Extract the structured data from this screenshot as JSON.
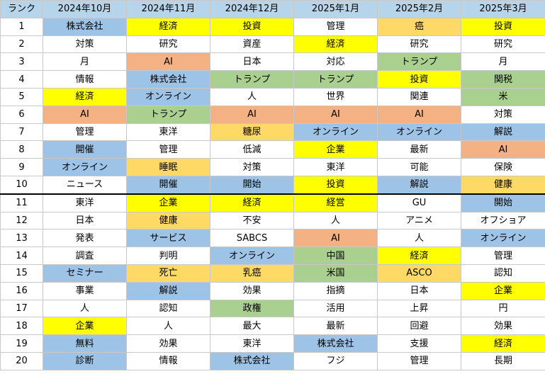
{
  "header": {
    "rank_label": "ランク",
    "months": [
      "2024年10月",
      "2024年11月",
      "2024年12月",
      "2025年1月",
      "2025年2月",
      "2025年3月"
    ]
  },
  "legend_colors": {
    "blue": "#9dc3e6",
    "yellow": "#ffff00",
    "orange": "#f4b183",
    "light_gold": "#ffd966",
    "green": "#a9d08e",
    "none": "#ffffff"
  },
  "rows": [
    {
      "rank": "1",
      "cells": [
        {
          "t": "株式会社",
          "c": "blue"
        },
        {
          "t": "経済",
          "c": "yellow"
        },
        {
          "t": "投資",
          "c": "yellow"
        },
        {
          "t": "管理",
          "c": "none"
        },
        {
          "t": "癌",
          "c": "lgold"
        },
        {
          "t": "投資",
          "c": "yellow"
        }
      ]
    },
    {
      "rank": "2",
      "cells": [
        {
          "t": "対策",
          "c": "none"
        },
        {
          "t": "研究",
          "c": "none"
        },
        {
          "t": "資産",
          "c": "none"
        },
        {
          "t": "経済",
          "c": "yellow"
        },
        {
          "t": "研究",
          "c": "none"
        },
        {
          "t": "研究",
          "c": "none"
        }
      ]
    },
    {
      "rank": "3",
      "cells": [
        {
          "t": "月",
          "c": "none"
        },
        {
          "t": "AI",
          "c": "orange"
        },
        {
          "t": "日本",
          "c": "none"
        },
        {
          "t": "対応",
          "c": "none"
        },
        {
          "t": "トランプ",
          "c": "green"
        },
        {
          "t": "月",
          "c": "none"
        }
      ]
    },
    {
      "rank": "4",
      "cells": [
        {
          "t": "情報",
          "c": "none"
        },
        {
          "t": "株式会社",
          "c": "blue"
        },
        {
          "t": "トランプ",
          "c": "green"
        },
        {
          "t": "トランプ",
          "c": "green"
        },
        {
          "t": "投資",
          "c": "yellow"
        },
        {
          "t": "関税",
          "c": "green"
        }
      ]
    },
    {
      "rank": "5",
      "cells": [
        {
          "t": "経済",
          "c": "yellow"
        },
        {
          "t": "オンライン",
          "c": "blue"
        },
        {
          "t": "人",
          "c": "none"
        },
        {
          "t": "世界",
          "c": "none"
        },
        {
          "t": "関連",
          "c": "none"
        },
        {
          "t": "米",
          "c": "green"
        }
      ]
    },
    {
      "rank": "6",
      "cells": [
        {
          "t": "AI",
          "c": "orange"
        },
        {
          "t": "トランプ",
          "c": "green"
        },
        {
          "t": "AI",
          "c": "orange"
        },
        {
          "t": "AI",
          "c": "orange"
        },
        {
          "t": "AI",
          "c": "orange"
        },
        {
          "t": "対策",
          "c": "none"
        }
      ]
    },
    {
      "rank": "7",
      "cells": [
        {
          "t": "管理",
          "c": "none"
        },
        {
          "t": "東洋",
          "c": "none"
        },
        {
          "t": "糖尿",
          "c": "lgold"
        },
        {
          "t": "オンライン",
          "c": "blue"
        },
        {
          "t": "オンライン",
          "c": "blue"
        },
        {
          "t": "解説",
          "c": "blue"
        }
      ]
    },
    {
      "rank": "8",
      "cells": [
        {
          "t": "開催",
          "c": "blue"
        },
        {
          "t": "管理",
          "c": "none"
        },
        {
          "t": "低減",
          "c": "none"
        },
        {
          "t": "企業",
          "c": "yellow"
        },
        {
          "t": "最新",
          "c": "none"
        },
        {
          "t": "AI",
          "c": "orange"
        }
      ]
    },
    {
      "rank": "9",
      "cells": [
        {
          "t": "オンライン",
          "c": "blue"
        },
        {
          "t": "睡眠",
          "c": "lgold"
        },
        {
          "t": "対策",
          "c": "none"
        },
        {
          "t": "東洋",
          "c": "none"
        },
        {
          "t": "可能",
          "c": "none"
        },
        {
          "t": "保険",
          "c": "none"
        }
      ]
    },
    {
      "rank": "10",
      "cells": [
        {
          "t": "ニュース",
          "c": "none"
        },
        {
          "t": "開催",
          "c": "blue"
        },
        {
          "t": "開始",
          "c": "blue"
        },
        {
          "t": "投資",
          "c": "yellow"
        },
        {
          "t": "解説",
          "c": "blue"
        },
        {
          "t": "健康",
          "c": "lgold"
        }
      ]
    },
    {
      "rank": "11",
      "cells": [
        {
          "t": "東洋",
          "c": "none"
        },
        {
          "t": "企業",
          "c": "yellow"
        },
        {
          "t": "経済",
          "c": "yellow"
        },
        {
          "t": "経営",
          "c": "yellow"
        },
        {
          "t": "GU",
          "c": "none"
        },
        {
          "t": "開始",
          "c": "blue"
        }
      ]
    },
    {
      "rank": "12",
      "cells": [
        {
          "t": "日本",
          "c": "none"
        },
        {
          "t": "健康",
          "c": "lgold"
        },
        {
          "t": "不安",
          "c": "none"
        },
        {
          "t": "人",
          "c": "none"
        },
        {
          "t": "アニメ",
          "c": "none"
        },
        {
          "t": "オフショア",
          "c": "none"
        }
      ]
    },
    {
      "rank": "13",
      "cells": [
        {
          "t": "発表",
          "c": "none"
        },
        {
          "t": "サービス",
          "c": "blue"
        },
        {
          "t": "SABCS",
          "c": "none"
        },
        {
          "t": "AI",
          "c": "orange"
        },
        {
          "t": "人",
          "c": "none"
        },
        {
          "t": "オンライン",
          "c": "blue"
        }
      ]
    },
    {
      "rank": "14",
      "cells": [
        {
          "t": "調査",
          "c": "none"
        },
        {
          "t": "判明",
          "c": "none"
        },
        {
          "t": "オンライン",
          "c": "blue"
        },
        {
          "t": "中国",
          "c": "green"
        },
        {
          "t": "経済",
          "c": "yellow"
        },
        {
          "t": "管理",
          "c": "none"
        }
      ]
    },
    {
      "rank": "15",
      "cells": [
        {
          "t": "セミナー",
          "c": "blue"
        },
        {
          "t": "死亡",
          "c": "lgold"
        },
        {
          "t": "乳癌",
          "c": "lgold"
        },
        {
          "t": "米国",
          "c": "green"
        },
        {
          "t": "ASCO",
          "c": "lgold"
        },
        {
          "t": "認知",
          "c": "none"
        }
      ]
    },
    {
      "rank": "16",
      "cells": [
        {
          "t": "事業",
          "c": "none"
        },
        {
          "t": "解説",
          "c": "blue"
        },
        {
          "t": "効果",
          "c": "none"
        },
        {
          "t": "指摘",
          "c": "none"
        },
        {
          "t": "日本",
          "c": "none"
        },
        {
          "t": "企業",
          "c": "yellow"
        }
      ]
    },
    {
      "rank": "17",
      "cells": [
        {
          "t": "人",
          "c": "none"
        },
        {
          "t": "認知",
          "c": "none"
        },
        {
          "t": "政権",
          "c": "green"
        },
        {
          "t": "活用",
          "c": "none"
        },
        {
          "t": "上昇",
          "c": "none"
        },
        {
          "t": "円",
          "c": "none"
        }
      ]
    },
    {
      "rank": "18",
      "cells": [
        {
          "t": "企業",
          "c": "yellow"
        },
        {
          "t": "人",
          "c": "none"
        },
        {
          "t": "最大",
          "c": "none"
        },
        {
          "t": "最新",
          "c": "none"
        },
        {
          "t": "回避",
          "c": "none"
        },
        {
          "t": "効果",
          "c": "none"
        }
      ]
    },
    {
      "rank": "19",
      "cells": [
        {
          "t": "無料",
          "c": "blue"
        },
        {
          "t": "効果",
          "c": "none"
        },
        {
          "t": "東洋",
          "c": "none"
        },
        {
          "t": "株式会社",
          "c": "blue"
        },
        {
          "t": "支援",
          "c": "none"
        },
        {
          "t": "経済",
          "c": "yellow"
        }
      ]
    },
    {
      "rank": "20",
      "cells": [
        {
          "t": "診断",
          "c": "blue"
        },
        {
          "t": "情報",
          "c": "none"
        },
        {
          "t": "株式会社",
          "c": "blue"
        },
        {
          "t": "フジ",
          "c": "none"
        },
        {
          "t": "管理",
          "c": "none"
        },
        {
          "t": "長期",
          "c": "none"
        }
      ]
    }
  ]
}
